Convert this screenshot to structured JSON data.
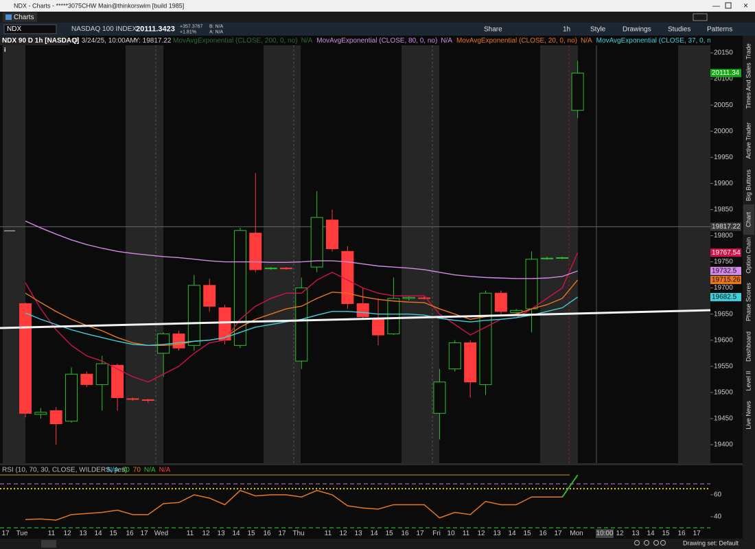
{
  "window": {
    "title": "NDX - Charts - *****3075CHW Main@thinkorswim [build 1985]",
    "tab": "Charts"
  },
  "toolbar": {
    "symbol": "NDX",
    "description": "NASDAQ 100 INDEX",
    "last": "20111.3423",
    "net_change": "+357.3767",
    "pct_change": "+1.81%",
    "bid": "B: N/A",
    "ask": "A: N/A",
    "buttons": [
      "Share",
      "1h",
      "Style",
      "Drawings",
      "Studies",
      "Patterns"
    ]
  },
  "chart_header": {
    "title": "NDX 90 D 1h [NASDAQ]",
    "date": "D: 3/24/25, 10:00AM",
    "cursor": "Y: 19817.22"
  },
  "other_studies": [
    {
      "name": "MovAvgExponential (CLOSE, 200, 0, no)",
      "status": "N/A",
      "color": "#2f6a2f"
    },
    {
      "name": "MovAvg...",
      "color": "#2f6a2f"
    }
  ],
  "chart_data": {
    "type": "candlestick",
    "open": [
      19670,
      19458,
      19465,
      19445,
      19535,
      19515,
      19552,
      19488,
      19486,
      19575,
      19612,
      19590,
      19705,
      19662,
      19590,
      19805,
      19737,
      19738,
      19560,
      19740,
      19830,
      19770,
      19670,
      19640,
      19612,
      19680,
      19681,
      19460,
      19545,
      19595,
      19515,
      19690,
      19653,
      19660,
      19756,
      19757,
      20040
    ],
    "high": [
      19672,
      19470,
      19472,
      19548,
      19540,
      19570,
      19555,
      19490,
      19488,
      19615,
      19618,
      19725,
      19718,
      19668,
      19815,
      19920,
      19740,
      19740,
      19720,
      19885,
      19850,
      19780,
      19700,
      19680,
      19720,
      19685,
      19684,
      19545,
      19600,
      19600,
      19695,
      19695,
      19660,
      19770,
      19760,
      19760,
      20135
    ],
    "low": [
      19452,
      19450,
      19400,
      19442,
      19510,
      19465,
      19465,
      19484,
      19480,
      19530,
      19580,
      19580,
      19655,
      19592,
      19585,
      19730,
      19735,
      19735,
      19545,
      19730,
      19770,
      19660,
      19640,
      19590,
      19610,
      19676,
      19678,
      19410,
      19540,
      19490,
      19495,
      19650,
      19648,
      19615,
      19754,
      19755,
      20025
    ],
    "close": [
      19460,
      19462,
      19440,
      19535,
      19515,
      19555,
      19490,
      19487,
      19485,
      19612,
      19585,
      19705,
      19665,
      19600,
      19810,
      19735,
      19738,
      19737,
      19700,
      19835,
      19775,
      19670,
      19645,
      19610,
      19680,
      19682,
      19680,
      19520,
      19595,
      19520,
      19690,
      19655,
      19657,
      19755,
      19757,
      19758,
      20111.34
    ],
    "up_color": "#2fbf2f",
    "down_color": "#ff3b3b",
    "ylim": [
      19364.5,
      20164.5
    ],
    "yticks": [
      20150,
      20100,
      20050,
      20000,
      19950,
      19900,
      19850,
      19800,
      19750,
      19700,
      19650,
      19600,
      19550,
      19500,
      19450,
      19400
    ],
    "hline": 19817.22,
    "series": [
      {
        "color": "#d0134a",
        "values": [
          19710,
          19660,
          19620,
          19590,
          19570,
          19560,
          19545,
          19530,
          19520,
          19535,
          19550,
          19575,
          19595,
          19600,
          19640,
          19665,
          19680,
          19690,
          19690,
          19715,
          19730,
          19715,
          19700,
          19690,
          19685,
          19685,
          19685,
          19650,
          19630,
          19610,
          19625,
          19640,
          19643,
          19660,
          19680,
          19700,
          19767.54
        ]
      },
      {
        "name": "MovAvgExponential (CLOSE, 80, 0, no)",
        "status": "N/A",
        "color": "#d58ae6",
        "values": [
          19828,
          19815,
          19803,
          19792,
          19783,
          19776,
          19770,
          19766,
          19763,
          19760,
          19758,
          19755,
          19752,
          19750,
          19750,
          19750,
          19749,
          19749,
          19750,
          19752,
          19752,
          19750,
          19746,
          19742,
          19740,
          19738,
          19735,
          19730,
          19725,
          19722,
          19720,
          19719,
          19718,
          19718,
          19719,
          19722,
          19732.5
        ]
      },
      {
        "name": "MovAvgExponential (CLOSE, 20, 0, no)",
        "status": "N/A",
        "color": "#e8761e",
        "values": [
          19690,
          19672,
          19655,
          19640,
          19628,
          19618,
          19605,
          19595,
          19590,
          19590,
          19592,
          19598,
          19600,
          19605,
          19625,
          19640,
          19650,
          19660,
          19665,
          19680,
          19692,
          19690,
          19683,
          19678,
          19675,
          19673,
          19672,
          19660,
          19650,
          19640,
          19645,
          19648,
          19650,
          19660,
          19668,
          19680,
          19715.26
        ]
      },
      {
        "name": "MovAvgExponential (CLOSE, 37, 0, no)",
        "status": "N/A",
        "color": "#3fd0dc",
        "values": [
          19652,
          19640,
          19630,
          19620,
          19612,
          19605,
          19598,
          19592,
          19590,
          19592,
          19595,
          19598,
          19600,
          19605,
          19615,
          19625,
          19630,
          19635,
          19640,
          19648,
          19655,
          19655,
          19653,
          19650,
          19650,
          19650,
          19648,
          19642,
          19638,
          19635,
          19638,
          19640,
          19643,
          19648,
          19655,
          19662,
          19682.5
        ]
      }
    ]
  },
  "rsi": {
    "legend": "RSI (10, 70, 30, CLOSE, WILDERS, yes)",
    "legend_items": [
      {
        "text": "N/A",
        "color": "#3fd0dc"
      },
      {
        "text": "30",
        "color": "#2fbf2f"
      },
      {
        "text": "70",
        "color": "#e8761e"
      },
      {
        "text": "N/A",
        "color": "#2fbf2f"
      },
      {
        "text": "N/A",
        "color": "#ff3b3b"
      }
    ],
    "values": [
      37.5,
      38,
      37,
      42,
      43,
      44,
      46,
      42,
      42,
      52,
      53,
      60,
      57,
      51,
      64,
      59,
      60,
      60,
      58,
      64,
      60,
      50,
      48,
      47,
      51,
      51,
      51,
      39,
      44,
      42,
      54,
      51,
      51,
      58,
      58,
      58,
      78
    ],
    "color": "#e8761e",
    "overbought_color": "#2fbf2f",
    "ylim": [
      29.4,
      86.9
    ],
    "yticks": [
      60,
      40
    ],
    "levels": [
      {
        "value": 78.1,
        "color": "#b8860b"
      },
      {
        "value": 70,
        "color": "#b070c0"
      },
      {
        "value": 65.6,
        "color": "#f0d000"
      },
      {
        "value": 30,
        "color": "#2fbf2f"
      }
    ]
  },
  "time_axis": [
    "17",
    "Tue",
    "11",
    "12",
    "13",
    "14",
    "15",
    "16",
    "17",
    "Wed",
    "11",
    "12",
    "13",
    "14",
    "15",
    "16",
    "17",
    "Thu",
    "11",
    "12",
    "13",
    "14",
    "15",
    "16",
    "17",
    "Fri",
    "10",
    "11",
    "12",
    "13",
    "14",
    "15",
    "16",
    "17",
    "Mon",
    "10:00",
    "12",
    "13",
    "14",
    "15",
    "16",
    "17"
  ],
  "side_tabs": [
    "Trade",
    "Times And Sales",
    "Active Trader",
    "Big Buttons",
    "Chart",
    "Option Chain",
    "Phase Scores",
    "Dashboard",
    "Level II",
    "Live News"
  ],
  "status_bar": {
    "drawing_set": "Drawing set: Default"
  }
}
